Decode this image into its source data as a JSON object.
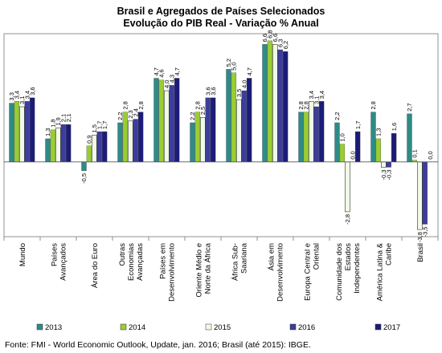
{
  "chart_data": {
    "type": "bar",
    "title": "Brasil e Agregados de Países Selecionados",
    "subtitle": "Evolução do PIB Real - Variação % Anual",
    "categories": [
      [
        "Mundo"
      ],
      [
        "Países",
        "Avançados"
      ],
      [
        "Área do Euro"
      ],
      [
        "Outras",
        "Economias",
        "Avançadas"
      ],
      [
        "Países em",
        "Desenvolvimento"
      ],
      [
        "Oriente Médio e",
        "Norte da África"
      ],
      [
        "África Sub-",
        "Saariana"
      ],
      [
        "Ásia em",
        "Desenvolvimento"
      ],
      [
        "Europa Central e",
        "Oriental"
      ],
      [
        "Comunidade dos",
        "Estados",
        "Independentes"
      ],
      [
        "América Latina &",
        "Caribe"
      ],
      [
        "Brasil"
      ]
    ],
    "series": [
      {
        "name": "2013",
        "color": "#2e8b87",
        "values": [
          3.3,
          1.3,
          -0.5,
          2.2,
          4.7,
          2.2,
          5.2,
          6.6,
          2.8,
          2.2,
          2.8,
          2.7
        ]
      },
      {
        "name": "2014",
        "color": "#9acd32",
        "values": [
          3.4,
          1.8,
          0.9,
          2.8,
          4.6,
          2.8,
          5.0,
          6.8,
          2.8,
          1.0,
          1.3,
          0.1
        ]
      },
      {
        "name": "2015",
        "color": "#f0fae6",
        "values": [
          3.1,
          1.9,
          1.5,
          2.3,
          4.0,
          2.5,
          3.5,
          6.6,
          3.4,
          -2.8,
          -0.3,
          -3.8
        ]
      },
      {
        "name": "2016",
        "color": "#3d3d9e",
        "values": [
          3.4,
          2.1,
          1.7,
          2.4,
          4.3,
          3.6,
          4.0,
          6.3,
          3.1,
          0.0,
          -0.3,
          -3.5
        ]
      },
      {
        "name": "2017",
        "color": "#1c1c78",
        "values": [
          3.6,
          2.1,
          1.7,
          2.8,
          4.7,
          3.6,
          4.7,
          6.2,
          3.4,
          1.7,
          1.6,
          0.0
        ]
      }
    ],
    "value_labels": [
      [
        "3,3",
        "3,4",
        "3,1",
        "3,4",
        "3,6"
      ],
      [
        "1,3",
        "1,8",
        "1,9",
        "2,1",
        "2,1"
      ],
      [
        "-0,5",
        "0,9",
        "1,5",
        "1,7",
        "1,7"
      ],
      [
        "2,2",
        "2,8",
        "2,3",
        "2,4",
        "2,8"
      ],
      [
        "4,7",
        "4,6",
        "4,0",
        "4,3",
        "4,7"
      ],
      [
        "2,2",
        "2,8",
        "2,5",
        "3,6",
        "3,6"
      ],
      [
        "5,2",
        "5,0",
        "3,5",
        "4,0",
        "4,7"
      ],
      [
        "6,6",
        "6,8",
        "6,6",
        "6,3",
        "6,2"
      ],
      [
        "2,8",
        "2,8",
        "3,4",
        "3,1",
        "3,4"
      ],
      [
        "2,2",
        "1,0",
        "-2,8",
        "0,0",
        "1,7"
      ],
      [
        "2,8",
        "1,3",
        "-0,3",
        "-0,3",
        "1,6"
      ],
      [
        "2,7",
        "0,1",
        "-3,8",
        "-3,5",
        "0,0"
      ]
    ],
    "ylim": [
      -4.2,
      7.2
    ],
    "grid": false,
    "legend_position": "bottom"
  },
  "source": "Fonte: FMI - World Economic Outlook, Update, jan. 2016; Brasil (até 2015): IBGE."
}
